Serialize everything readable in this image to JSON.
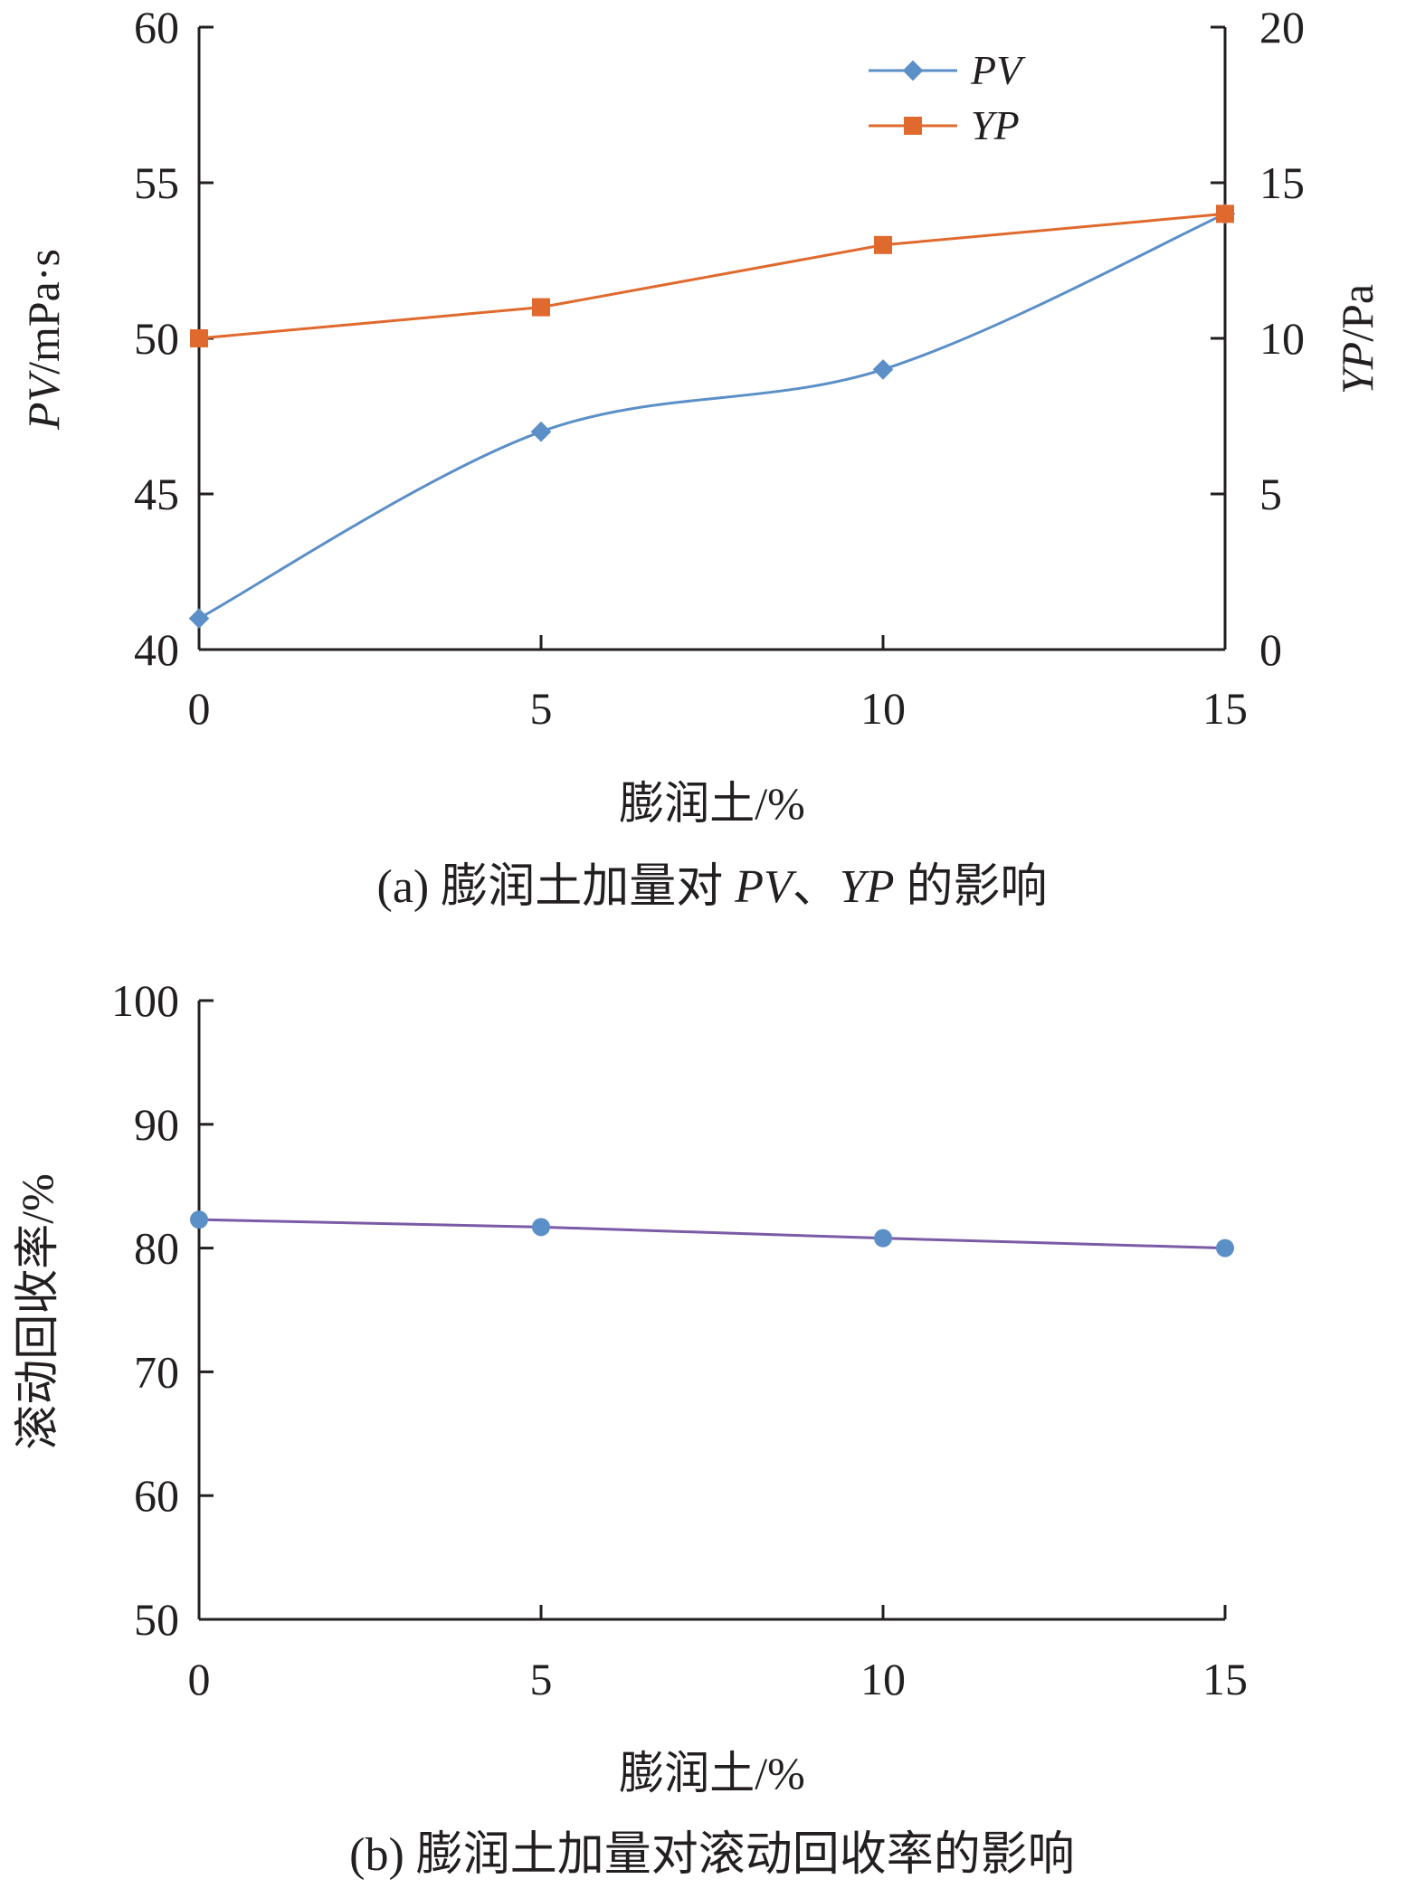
{
  "chart_data": [
    {
      "type": "line",
      "caption": "(a) 膨润土加量对 PV、YP 的影响",
      "caption_parts": {
        "prefix": "(a) 膨润土加量对 ",
        "pv": "PV",
        "sep": "、",
        "yp": "YP",
        "suffix": " 的影响"
      },
      "x": [
        0,
        5,
        10,
        15
      ],
      "x_ticks": [
        "0",
        "5",
        "10",
        "15"
      ],
      "xlim": [
        0,
        15
      ],
      "xlabel": "膨润土/%",
      "ylabel_left": {
        "italic": "PV",
        "rest": "/mPa·s"
      },
      "ylabel_right": {
        "italic": "YP",
        "rest": "/Pa"
      },
      "ylim_left": [
        40,
        60
      ],
      "ylim_right": [
        0,
        20
      ],
      "y_ticks_left": [
        "40",
        "45",
        "50",
        "55",
        "60"
      ],
      "y_ticks_right": [
        "0",
        "5",
        "10",
        "15",
        "20"
      ],
      "legend_position": "top-right",
      "grid": false,
      "series": [
        {
          "name": "PV",
          "axis": "left",
          "values": [
            41,
            47,
            49,
            54
          ],
          "color": "#5b8fc7",
          "marker": "diamond",
          "smooth": true
        },
        {
          "name": "YP",
          "axis": "right",
          "values": [
            10,
            11,
            13,
            14
          ],
          "color": "#e0692e",
          "marker": "square",
          "smooth": false
        }
      ]
    },
    {
      "type": "line",
      "caption": "(b) 膨润土加量对滚动回收率的影响",
      "x": [
        0,
        5,
        10,
        15
      ],
      "x_ticks": [
        "0",
        "5",
        "10",
        "15"
      ],
      "xlim": [
        0,
        15
      ],
      "xlabel": "膨润土/%",
      "ylabel": "滚动回收率/%",
      "ylim": [
        50,
        100
      ],
      "y_ticks": [
        "50",
        "60",
        "70",
        "80",
        "90",
        "100"
      ],
      "grid": false,
      "series": [
        {
          "values": [
            82.3,
            81.7,
            80.8,
            80.0
          ],
          "color": "#5b8fc7",
          "marker": "circle",
          "line_color": "#7b5aa6"
        }
      ]
    }
  ]
}
